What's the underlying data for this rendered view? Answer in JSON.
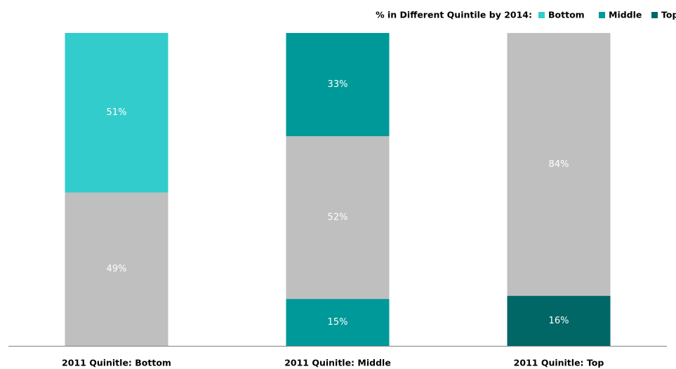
{
  "chart_data": {
    "type": "stacked_bar",
    "legend": {
      "title": "% in Different Quintile  by 2014:",
      "items": [
        {
          "name": "Bottom",
          "color": "#33cccc"
        },
        {
          "name": "Middle",
          "color": "#009999"
        },
        {
          "name": "Top",
          "color": "#006666"
        }
      ]
    },
    "categories": [
      "2011 Quinitle: Bottom",
      "2011 Quinitle: Middle",
      "2011 Quinitle: Top"
    ],
    "series": [
      {
        "values": [
          49,
          15,
          16
        ],
        "value_labels": [
          "49%",
          "15%",
          "16%"
        ],
        "colors": [
          "#bfbfbf",
          "#009999",
          "#006666"
        ]
      },
      {
        "values": [
          51,
          52,
          84
        ],
        "value_labels": [
          "51%",
          "52%",
          "84%"
        ],
        "colors": [
          "#33cccc",
          "#bfbfbf",
          "#bfbfbf"
        ]
      },
      {
        "values": [
          null,
          33,
          null
        ],
        "value_labels": [
          null,
          "33%",
          null
        ],
        "colors": [
          null,
          "#009999",
          null
        ]
      }
    ],
    "ylim": [
      0,
      100
    ]
  }
}
